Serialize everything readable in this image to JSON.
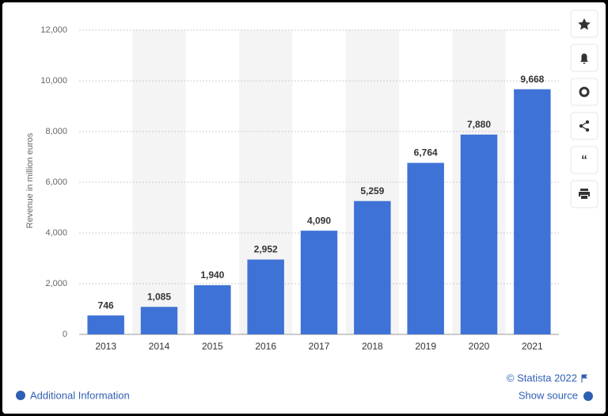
{
  "chart_data": {
    "type": "bar",
    "y_label": "Revenue in million euros",
    "categories": [
      "2013",
      "2014",
      "2015",
      "2016",
      "2017",
      "2018",
      "2019",
      "2020",
      "2021"
    ],
    "values": [
      746,
      1085,
      1940,
      2952,
      4090,
      5259,
      6764,
      7880,
      9668
    ],
    "value_labels": [
      "746",
      "1,085",
      "1,940",
      "2,952",
      "4,090",
      "5,259",
      "6,764",
      "7,880",
      "9,668"
    ],
    "color": "#3f72d6",
    "ylim": [
      0,
      12000
    ],
    "yticks": [
      0,
      {
        "value": 2000,
        "label": "2,000"
      },
      {
        "value": 4000,
        "label": "4,000"
      },
      {
        "value": 6000,
        "label": "6,000"
      },
      {
        "value": 8000,
        "label": "8,000"
      },
      {
        "value": 10000,
        "label": "10,000"
      },
      {
        "value": 12000,
        "label": "12,000"
      }
    ],
    "grid": true
  },
  "footer": {
    "copyright": "© Statista 2022",
    "show_source": "Show source",
    "additional_info": "Additional Information"
  }
}
